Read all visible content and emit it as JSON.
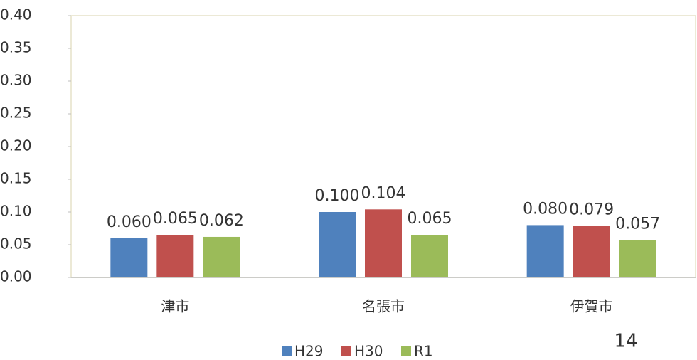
{
  "chart_data": {
    "type": "bar",
    "categories": [
      "津市",
      "名張市",
      "伊賀市"
    ],
    "series": [
      {
        "name": "H29",
        "color": "#4f81bd",
        "values": [
          0.06,
          0.1,
          0.08
        ],
        "value_labels": [
          "0.060",
          "0.100",
          "0.080"
        ]
      },
      {
        "name": "H30",
        "color": "#c0504d",
        "values": [
          0.065,
          0.104,
          0.079
        ],
        "value_labels": [
          "0.065",
          "0.104",
          "0.079"
        ]
      },
      {
        "name": "R1",
        "color": "#9bbb59",
        "values": [
          0.062,
          0.065,
          0.057
        ],
        "value_labels": [
          "0.062",
          "0.065",
          "0.057"
        ]
      }
    ],
    "ylim": [
      0,
      0.4
    ],
    "yticks": [
      {
        "value": 0,
        "label": "0.00"
      },
      {
        "value": 0.05,
        "label": "0.05"
      },
      {
        "value": 0.1,
        "label": "0.10"
      },
      {
        "value": 0.15,
        "label": "0.15"
      },
      {
        "value": 0.2,
        "label": "0.20"
      },
      {
        "value": 0.25,
        "label": "0.25"
      },
      {
        "value": 0.3,
        "label": "0.30"
      },
      {
        "value": 0.35,
        "label": "0.35"
      },
      {
        "value": 0.4,
        "label": "0.40"
      }
    ],
    "legend": "bottom"
  },
  "page_number": "14"
}
